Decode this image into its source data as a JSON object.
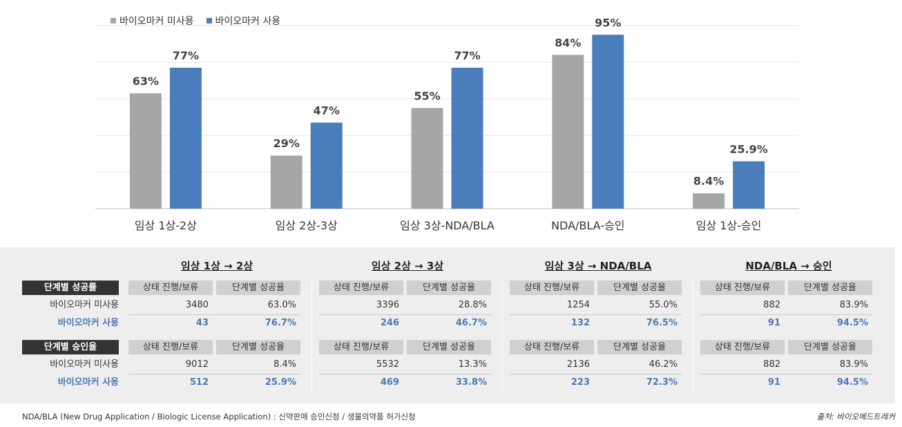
{
  "chart_data": {
    "type": "bar",
    "categories": [
      "임상 1상-2상",
      "임상 2상-3상",
      "임상 3상-NDA/BLA",
      "NDA/BLA-승인",
      "임상 1상-승인"
    ],
    "series": [
      {
        "name": "바이오마커 미사용",
        "values": [
          63,
          29,
          55,
          84,
          8.4
        ],
        "labels": [
          "63%",
          "29%",
          "55%",
          "84%",
          "8.4%"
        ],
        "color": "#a6a6a6"
      },
      {
        "name": "바이오마커 사용",
        "values": [
          77,
          47,
          77,
          95,
          25.9
        ],
        "labels": [
          "77%",
          "47%",
          "77%",
          "95%",
          "25.9%"
        ],
        "color": "#4a7ebb"
      }
    ],
    "ylim": [
      0,
      100
    ],
    "grid": true,
    "legend": "top-left"
  },
  "table": {
    "sections": [
      {
        "title": "단계별 성공률"
      },
      {
        "title": "단계별 승인율"
      }
    ],
    "row_labels": [
      "바이오마커 미사용",
      "바이오마커 사용"
    ],
    "col_headers": [
      "상태 진행/보류",
      "단계별 성공율"
    ],
    "stages": [
      {
        "title": "임상 1상 → 2상",
        "success": [
          [
            "3480",
            "63.0%"
          ],
          [
            "43",
            "76.7%"
          ]
        ],
        "approval": [
          [
            "9012",
            "8.4%"
          ],
          [
            "512",
            "25.9%"
          ]
        ]
      },
      {
        "title": "임상 2상 → 3상",
        "success": [
          [
            "3396",
            "28.8%"
          ],
          [
            "246",
            "46.7%"
          ]
        ],
        "approval": [
          [
            "5532",
            "13.3%"
          ],
          [
            "469",
            "33.8%"
          ]
        ]
      },
      {
        "title": "임상 3상 → NDA/BLA",
        "success": [
          [
            "1254",
            "55.0%"
          ],
          [
            "132",
            "76.5%"
          ]
        ],
        "approval": [
          [
            "2136",
            "46.2%"
          ],
          [
            "223",
            "72.3%"
          ]
        ]
      },
      {
        "title": "NDA/BLA → 승인",
        "success": [
          [
            "882",
            "83.9%"
          ],
          [
            "91",
            "94.5%"
          ]
        ],
        "approval": [
          [
            "882",
            "83.9%"
          ],
          [
            "91",
            "94.5%"
          ]
        ]
      }
    ]
  },
  "footnote": "NDA/BLA (New Drug Application / Biologic License Application) : 신약판매 승인신청 / 생물의약품 허가신청",
  "source": "출처: 바이오메드트레커"
}
